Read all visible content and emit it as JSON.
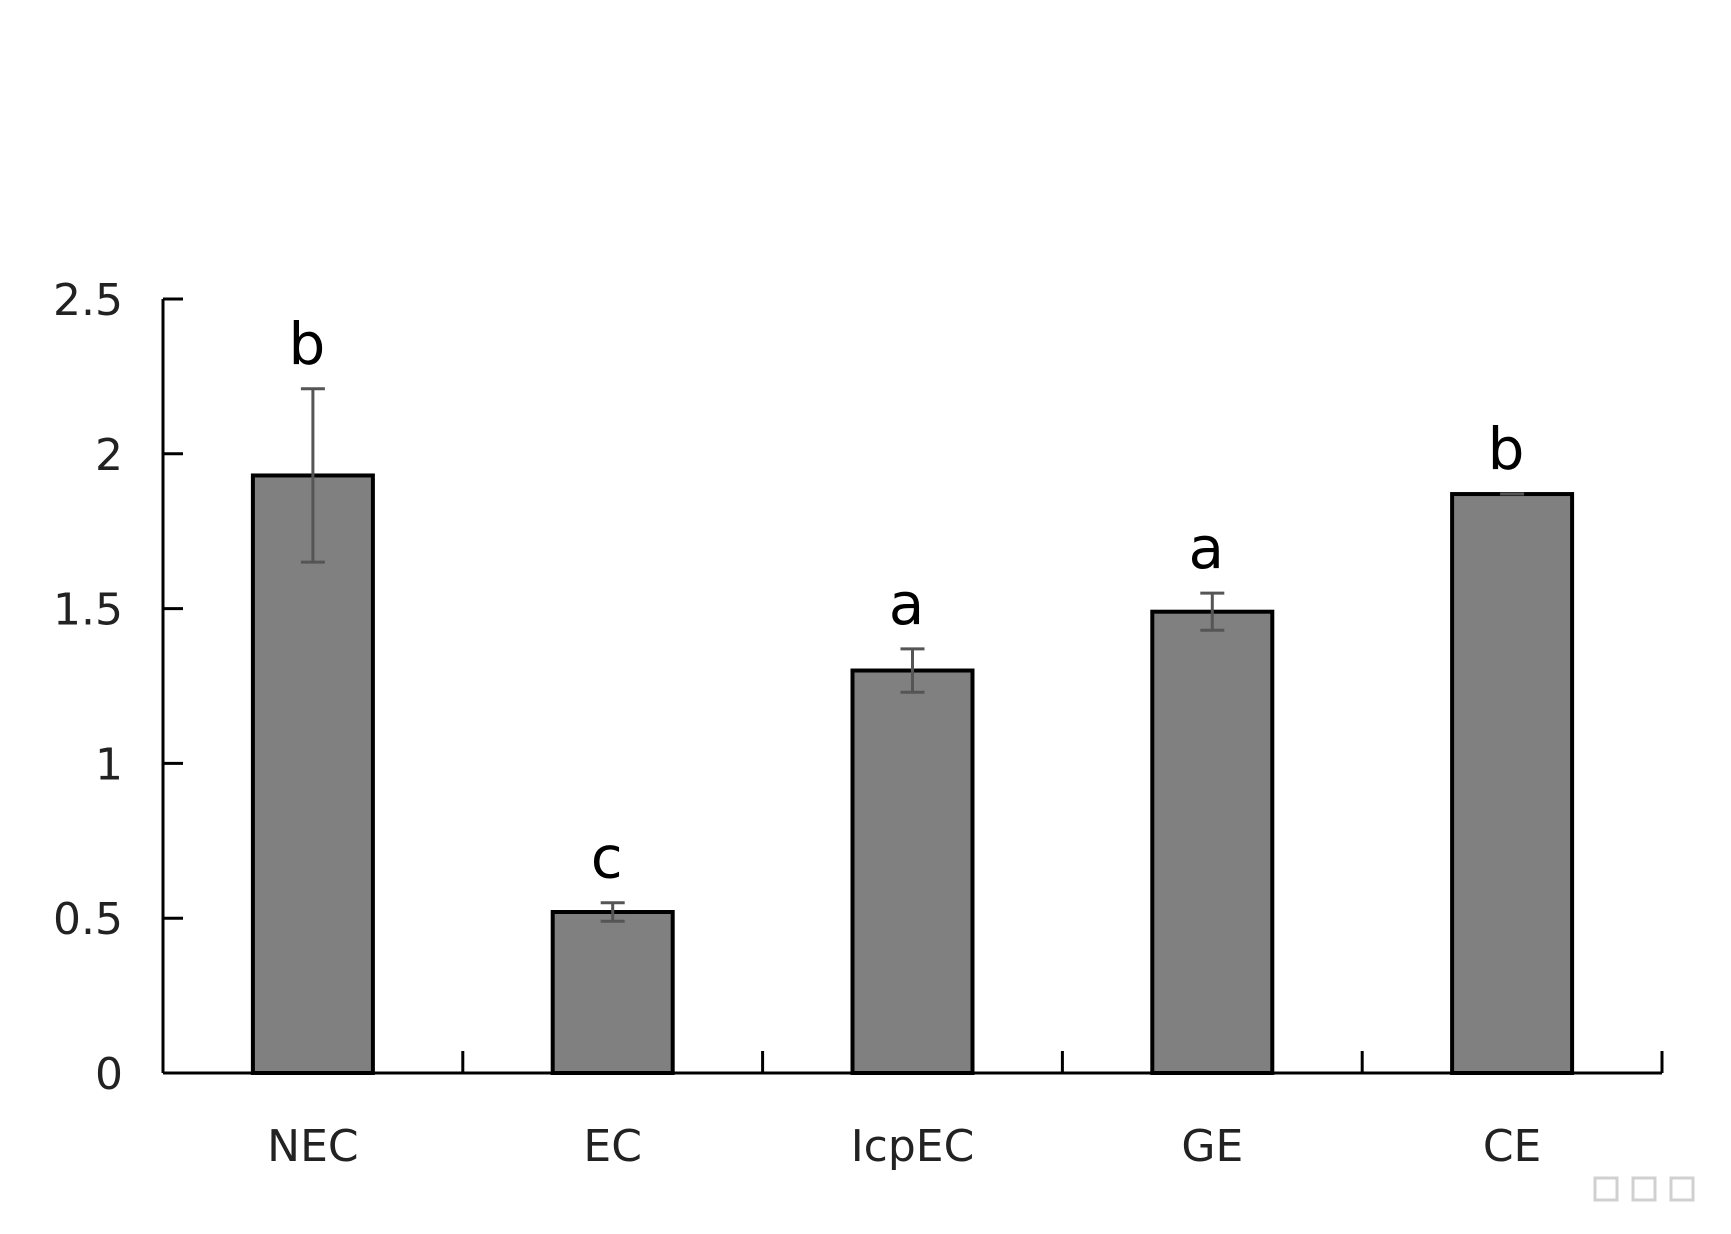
{
  "chart_data": {
    "type": "bar",
    "categories": [
      "NEC",
      "EC",
      "IcpEC",
      "GE",
      "CE"
    ],
    "values": [
      1.93,
      0.52,
      1.3,
      1.49,
      1.87
    ],
    "error": [
      0.28,
      0.03,
      0.07,
      0.06,
      0.0
    ],
    "significance": [
      "b",
      "c",
      "a",
      "a",
      "b"
    ],
    "title": "",
    "xlabel": "",
    "ylabel": "",
    "ylim": [
      0,
      2.5
    ],
    "yticks": [
      "0",
      "0.5",
      "1",
      "1.5",
      "2",
      "2.5"
    ],
    "grid": false,
    "colors": {
      "bar_fill": "#808080",
      "bar_stroke": "#000000",
      "error_bar": "#555555",
      "axis": "#000000"
    }
  },
  "watermark": {
    "text": "学术堂"
  }
}
